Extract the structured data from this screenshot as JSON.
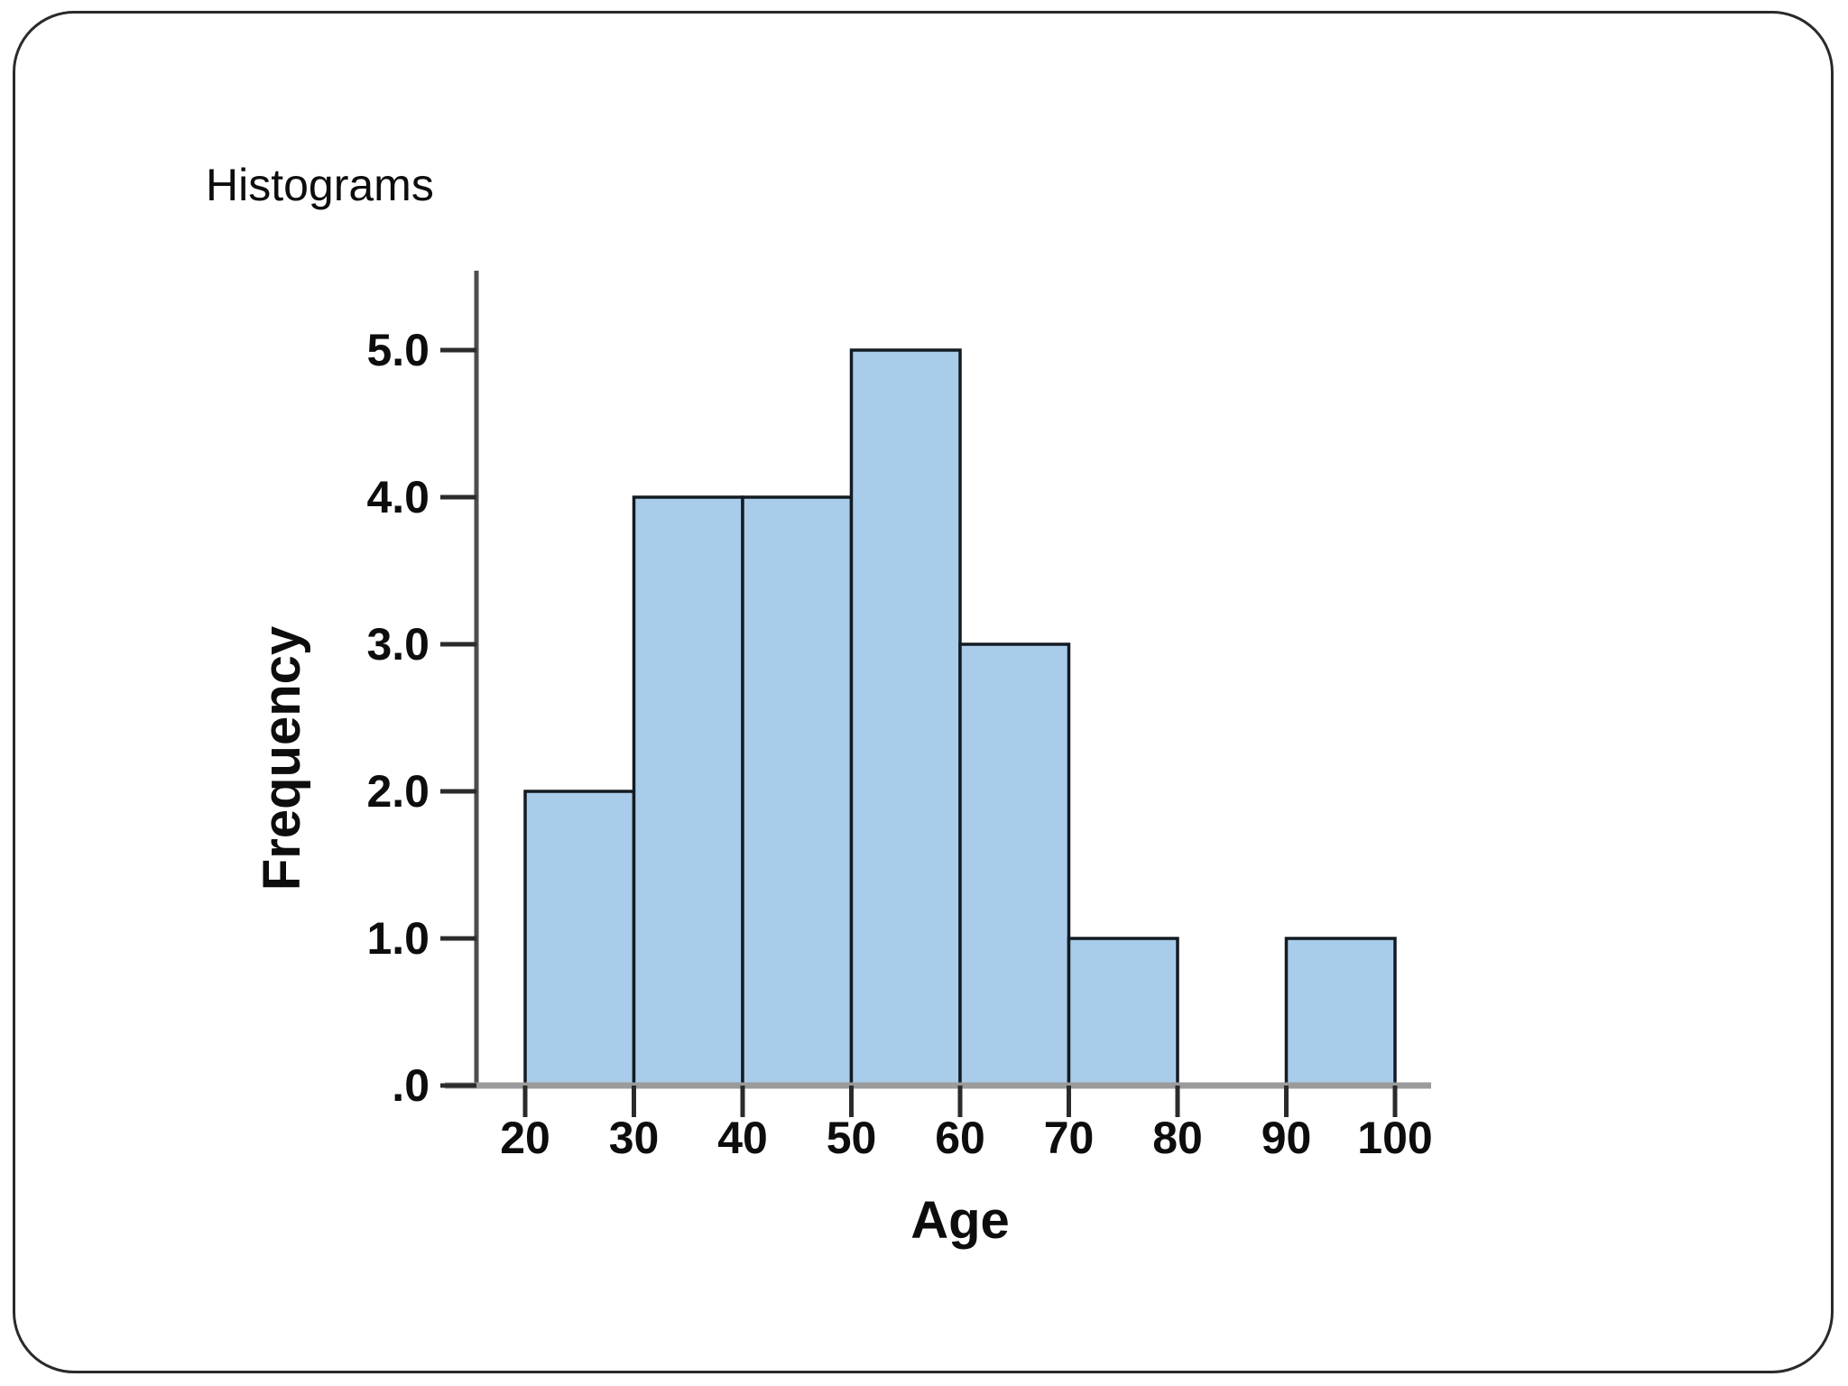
{
  "slide": {
    "title": "Histograms"
  },
  "colors": {
    "background": "#FFFFFF",
    "frame_border": "#2A2A2A",
    "bar_fill": "#A9CCEA",
    "bar_border": "#131B22",
    "y_axis_line": "#4D4D4D",
    "x_baseline": "#9B9B9B",
    "tick_mark": "#2B2B2B",
    "text": "#0D0D0D"
  },
  "chart_data": {
    "type": "bar",
    "subtype": "histogram",
    "title": "Histograms",
    "xlabel": "Age",
    "ylabel": "Frequency",
    "bins": [
      {
        "range": [
          20,
          30
        ],
        "frequency": 2
      },
      {
        "range": [
          30,
          40
        ],
        "frequency": 4
      },
      {
        "range": [
          40,
          50
        ],
        "frequency": 4
      },
      {
        "range": [
          50,
          60
        ],
        "frequency": 5
      },
      {
        "range": [
          60,
          70
        ],
        "frequency": 3
      },
      {
        "range": [
          70,
          80
        ],
        "frequency": 1
      },
      {
        "range": [
          80,
          90
        ],
        "frequency": 0
      },
      {
        "range": [
          90,
          100
        ],
        "frequency": 1
      }
    ],
    "x_tick_values": [
      20,
      30,
      40,
      50,
      60,
      70,
      80,
      90,
      100
    ],
    "x_ticks": [
      "20",
      "30",
      "40",
      "50",
      "60",
      "70",
      "80",
      "90",
      "100"
    ],
    "y_tick_values": [
      0,
      1,
      2,
      3,
      4,
      5
    ],
    "y_ticks": [
      ".0",
      "1.0",
      "2.0",
      "3.0",
      "4.0",
      "5.0"
    ],
    "xlim": [
      20,
      100
    ],
    "ylim": [
      0,
      5.55
    ],
    "grid": "off",
    "legend": "none"
  }
}
